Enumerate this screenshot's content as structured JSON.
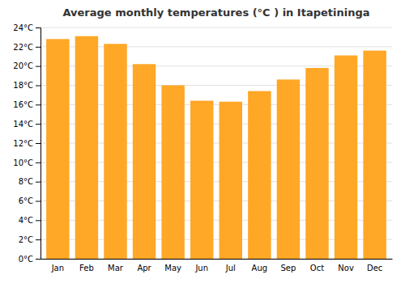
{
  "chart_data": {
    "type": "bar",
    "title": "Average monthly temperatures (°C ) in Itapetininga",
    "categories": [
      "Jan",
      "Feb",
      "Mar",
      "Apr",
      "May",
      "Jun",
      "Jul",
      "Aug",
      "Sep",
      "Oct",
      "Nov",
      "Dec"
    ],
    "values": [
      22.8,
      23.1,
      22.3,
      20.2,
      18.0,
      16.4,
      16.3,
      17.4,
      18.6,
      19.8,
      21.1,
      21.6
    ],
    "color": "#FFA726",
    "ylim": [
      0,
      24
    ],
    "yticks": [
      {
        "value": 0,
        "label": "0°C"
      },
      {
        "value": 2,
        "label": "2°C"
      },
      {
        "value": 4,
        "label": "4°C"
      },
      {
        "value": 6,
        "label": "6°C"
      },
      {
        "value": 8,
        "label": "8°C"
      },
      {
        "value": 10,
        "label": "10°C"
      },
      {
        "value": 12,
        "label": "12°C"
      },
      {
        "value": 14,
        "label": "14°C"
      },
      {
        "value": 16,
        "label": "16°C"
      },
      {
        "value": 18,
        "label": "18°C"
      },
      {
        "value": 20,
        "label": "20°C"
      },
      {
        "value": 22,
        "label": "22°C"
      },
      {
        "value": 24,
        "label": "24°C"
      }
    ],
    "grid": true
  }
}
